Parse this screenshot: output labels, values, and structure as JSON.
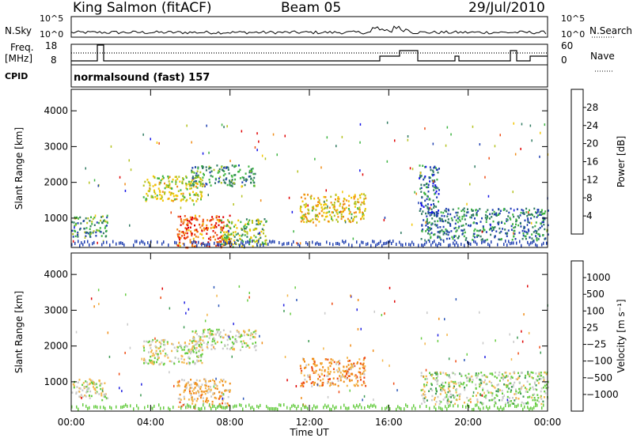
{
  "header": {
    "station": "King Salmon (fitACF)",
    "beam": "Beam 05",
    "date": "29/Jul/2010"
  },
  "strips": {
    "nsky_label": "N.Sky",
    "nsearch_label": "N.Search",
    "noise_ticks": [
      "10^5",
      "10^0"
    ],
    "freq_label": "Freq.",
    "freq_unit": "[MHz]",
    "freq_ticks": [
      "18",
      "8"
    ],
    "nave_label": "Nave",
    "nave_ticks": [
      "60",
      "0"
    ],
    "cpid_label": "CPID",
    "cpid_value": "normalsound (fast) 157"
  },
  "chart_data": [
    {
      "type": "heatmap",
      "title": "",
      "xlabel": "Time UT",
      "ylabel": "Slant Range [km]",
      "x_ticks": [
        "00:00",
        "04:00",
        "08:00",
        "12:00",
        "16:00",
        "20:00",
        "00:00"
      ],
      "y_ticks": [
        1000,
        2000,
        3000,
        4000
      ],
      "xlim": [
        0,
        24
      ],
      "ylim": [
        180,
        4600
      ],
      "colorbar": {
        "label": "Power [dB]",
        "ticks": [
          "4",
          "8",
          "12",
          "16",
          "20",
          "24",
          "28"
        ],
        "colors": [
          "#1010e8",
          "#1f3fb0",
          "#2f7a60",
          "#3cb440",
          "#b4c21e",
          "#f3c600",
          "#f08b15",
          "#ee4a12",
          "#e00000"
        ]
      },
      "regions": [
        {
          "t": [
            3.6,
            6.6
          ],
          "r": [
            1500,
            2200
          ],
          "level": 0.55
        },
        {
          "t": [
            6.0,
            9.3
          ],
          "r": [
            1900,
            2500
          ],
          "level": 0.3
        },
        {
          "t": [
            5.3,
            8.0
          ],
          "r": [
            200,
            1100
          ],
          "level": 0.85
        },
        {
          "t": [
            7.5,
            9.8
          ],
          "r": [
            200,
            1000
          ],
          "level": 0.45
        },
        {
          "t": [
            0.0,
            1.8
          ],
          "r": [
            500,
            1100
          ],
          "level": 0.3
        },
        {
          "t": [
            11.5,
            14.8
          ],
          "r": [
            900,
            1700
          ],
          "level": 0.6
        },
        {
          "t": [
            17.6,
            24.0
          ],
          "r": [
            400,
            1300
          ],
          "level": 0.25
        },
        {
          "t": [
            17.5,
            18.5
          ],
          "r": [
            1100,
            2500
          ],
          "level": 0.2
        }
      ]
    },
    {
      "type": "heatmap",
      "title": "",
      "xlabel": "Time UT",
      "ylabel": "Slant Range [km]",
      "x_ticks": [
        "00:00",
        "04:00",
        "08:00",
        "12:00",
        "16:00",
        "20:00",
        "00:00"
      ],
      "y_ticks": [
        1000,
        2000,
        3000,
        4000
      ],
      "xlim": [
        0,
        24
      ],
      "ylim": [
        180,
        4600
      ],
      "colorbar": {
        "label": "Velocity [m s⁻¹]",
        "ticks": [
          "1000",
          "500",
          "100",
          "25",
          "−25",
          "−100",
          "−500",
          "−1000"
        ],
        "colors": [
          "#1c1ce0",
          "#2b56b8",
          "#3c9a52",
          "#66cc40",
          "#c8c8c8",
          "#f3b64a",
          "#f08b15",
          "#ee4a12",
          "#e00000"
        ]
      },
      "regions": [
        {
          "t": [
            3.6,
            6.6
          ],
          "r": [
            1500,
            2200
          ],
          "level": 0.5
        },
        {
          "t": [
            6.0,
            9.3
          ],
          "r": [
            1900,
            2500
          ],
          "level": 0.5
        },
        {
          "t": [
            5.3,
            8.0
          ],
          "r": [
            300,
            1100
          ],
          "level": 0.65
        },
        {
          "t": [
            0.0,
            1.8
          ],
          "r": [
            500,
            1100
          ],
          "level": 0.5
        },
        {
          "t": [
            11.5,
            14.8
          ],
          "r": [
            900,
            1700
          ],
          "level": 0.7
        },
        {
          "t": [
            17.6,
            24.0
          ],
          "r": [
            400,
            1300
          ],
          "level": 0.45
        }
      ]
    }
  ]
}
